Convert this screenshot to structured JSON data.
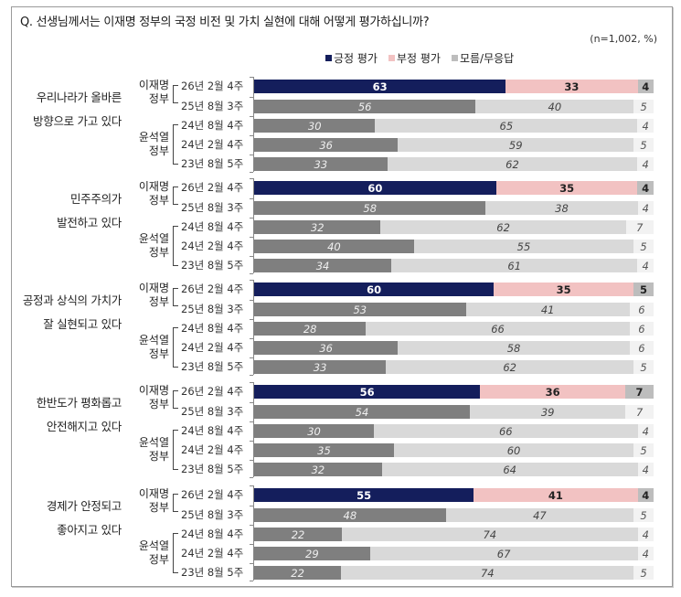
{
  "header": {
    "title": "Q. 선생님께서는 이재명 정부의 국정 비전 및 가치 실현에 대해 어떻게 평가하십니까?",
    "sample": "(n=1,002, %)"
  },
  "legend": [
    {
      "label": "긍정 평가",
      "color": "#141e5c"
    },
    {
      "label": "부정 평가",
      "color": "#f2c2c2"
    },
    {
      "label": "모름/무응답",
      "color": "#bdbdbd"
    }
  ],
  "gov_labels": {
    "lee": [
      "이재명",
      "정부"
    ],
    "yoon": [
      "윤석열",
      "정부"
    ]
  },
  "row_labels": [
    "26년 2월 4주",
    "25년 8월 3주",
    "24년 8월 4주",
    "24년 2월 4주",
    "23년 8월 5주"
  ],
  "chart_data": {
    "type": "bar",
    "orientation": "horizontal-stacked-100",
    "title": "Q. 선생님께서는 이재명 정부의 국정 비전 및 가치 실현에 대해 어떻게 평가하십니까?",
    "note": "(n=1,002, %)",
    "legend": [
      "긍정 평가",
      "부정 평가",
      "모름/무응답"
    ],
    "legend_position": "top-right",
    "categories": [
      "26년 2월 4주",
      "25년 8월 3주",
      "24년 8월 4주",
      "24년 2월 4주",
      "23년 8월 5주"
    ],
    "groups": [
      {
        "topic": [
          "우리나라가 올바른",
          "방향으로 가고 있다"
        ],
        "series": [
          {
            "name": "긍정 평가",
            "values": [
              63,
              56,
              30,
              36,
              33
            ]
          },
          {
            "name": "부정 평가",
            "values": [
              33,
              40,
              65,
              59,
              62
            ]
          },
          {
            "name": "모름/무응답",
            "values": [
              4,
              5,
              4,
              5,
              4
            ]
          }
        ]
      },
      {
        "topic": [
          "민주주의가",
          "발전하고 있다"
        ],
        "series": [
          {
            "name": "긍정 평가",
            "values": [
              60,
              58,
              32,
              40,
              34
            ]
          },
          {
            "name": "부정 평가",
            "values": [
              35,
              38,
              62,
              55,
              61
            ]
          },
          {
            "name": "모름/무응답",
            "values": [
              4,
              4,
              7,
              5,
              4
            ]
          }
        ]
      },
      {
        "topic": [
          "공정과 상식의 가치가",
          "잘 실현되고 있다"
        ],
        "series": [
          {
            "name": "긍정 평가",
            "values": [
              60,
              53,
              28,
              36,
              33
            ]
          },
          {
            "name": "부정 평가",
            "values": [
              35,
              41,
              66,
              58,
              62
            ]
          },
          {
            "name": "모름/무응답",
            "values": [
              5,
              6,
              6,
              6,
              5
            ]
          }
        ]
      },
      {
        "topic": [
          "한반도가 평화롭고",
          "안전해지고 있다"
        ],
        "series": [
          {
            "name": "긍정 평가",
            "values": [
              56,
              54,
              30,
              35,
              32
            ]
          },
          {
            "name": "부정 평가",
            "values": [
              36,
              39,
              66,
              60,
              64
            ]
          },
          {
            "name": "모름/무응답",
            "values": [
              7,
              7,
              4,
              5,
              4
            ]
          }
        ]
      },
      {
        "topic": [
          "경제가 안정되고",
          "좋아지고 있다"
        ],
        "series": [
          {
            "name": "긍정 평가",
            "values": [
              55,
              48,
              22,
              29,
              22
            ]
          },
          {
            "name": "부정 평가",
            "values": [
              41,
              47,
              74,
              67,
              74
            ]
          },
          {
            "name": "모름/무응답",
            "values": [
              4,
              5,
              4,
              4,
              5
            ]
          }
        ]
      }
    ],
    "xlabel": "",
    "ylabel": "",
    "xlim": [
      0,
      100
    ],
    "grid": false
  }
}
